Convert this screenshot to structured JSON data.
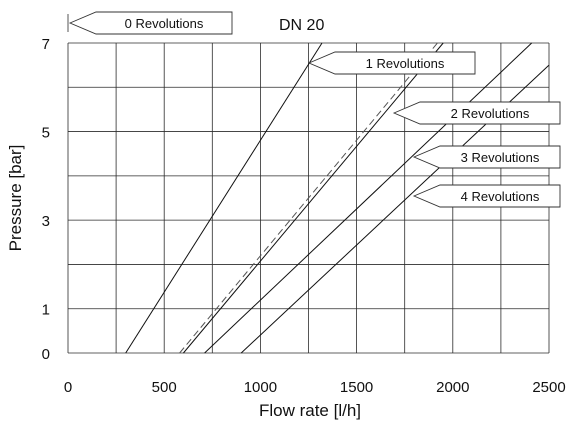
{
  "chart_data": {
    "type": "line",
    "title": "DN 20",
    "xlabel": "Flow rate [l/h]",
    "ylabel": "Pressure [bar]",
    "xlim": [
      0,
      2500
    ],
    "ylim": [
      0,
      7
    ],
    "x_ticks": [
      0,
      500,
      1000,
      1500,
      2000,
      2500
    ],
    "y_ticks": [
      0,
      1,
      3,
      5,
      7
    ],
    "grid": true,
    "series": [
      {
        "name": "0 Revolutions",
        "style": "solid",
        "x": [
          300,
          1320
        ],
        "y": [
          0,
          7
        ]
      },
      {
        "name": "1 Revolutions",
        "style": "solid",
        "x": [
          600,
          1950
        ],
        "y": [
          0,
          7
        ]
      },
      {
        "name": "2 Revolutions",
        "style": "dashed",
        "x": [
          580,
          1920
        ],
        "y": [
          0,
          7
        ]
      },
      {
        "name": "3 Revolutions",
        "style": "solid",
        "x": [
          710,
          2410
        ],
        "y": [
          0,
          7
        ]
      },
      {
        "name": "4 Revolutions",
        "style": "solid",
        "x": [
          900,
          2500
        ],
        "y": [
          0,
          6.5
        ]
      }
    ]
  }
}
